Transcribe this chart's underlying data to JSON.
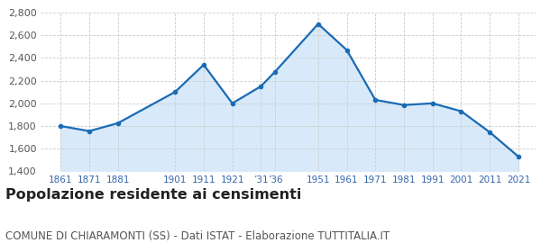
{
  "years": [
    1861,
    1871,
    1881,
    1901,
    1911,
    1921,
    1931,
    1936,
    1951,
    1961,
    1971,
    1981,
    1991,
    2001,
    2011,
    2021
  ],
  "values": [
    1800,
    1755,
    1825,
    2100,
    2340,
    2000,
    2150,
    2280,
    2700,
    2470,
    2030,
    1985,
    2000,
    1930,
    1745,
    1530
  ],
  "tick_years": [
    1861,
    1871,
    1881,
    1901,
    1911,
    1921,
    1931,
    1936,
    1951,
    1961,
    1971,
    1981,
    1991,
    2001,
    2011,
    2021
  ],
  "tick_labels": [
    "1861",
    "1871",
    "1881",
    "1901",
    "1911",
    "1921",
    "’31",
    "’36",
    "1951",
    "1961",
    "1971",
    "1981",
    "1991",
    "2001",
    "2011",
    "2021"
  ],
  "ylim": [
    1400,
    2800
  ],
  "yticks": [
    1400,
    1600,
    1800,
    2000,
    2200,
    2400,
    2600,
    2800
  ],
  "xlim_left": 1854,
  "xlim_right": 2027,
  "line_color": "#1a6bb5",
  "fill_color": "#d8eaf9",
  "marker_color": "#1a6bb5",
  "grid_color": "#cccccc",
  "bg_color": "#ffffff",
  "title": "Popolazione residente ai censimenti",
  "subtitle": "COMUNE DI CHIARAMONTI (SS) - Dati ISTAT - Elaborazione TUTTITALIA.IT",
  "title_fontsize": 11.5,
  "subtitle_fontsize": 8.5,
  "title_color": "#222222",
  "subtitle_color": "#555555",
  "tick_label_color": "#3366aa",
  "tick_fontsize": 7.5
}
